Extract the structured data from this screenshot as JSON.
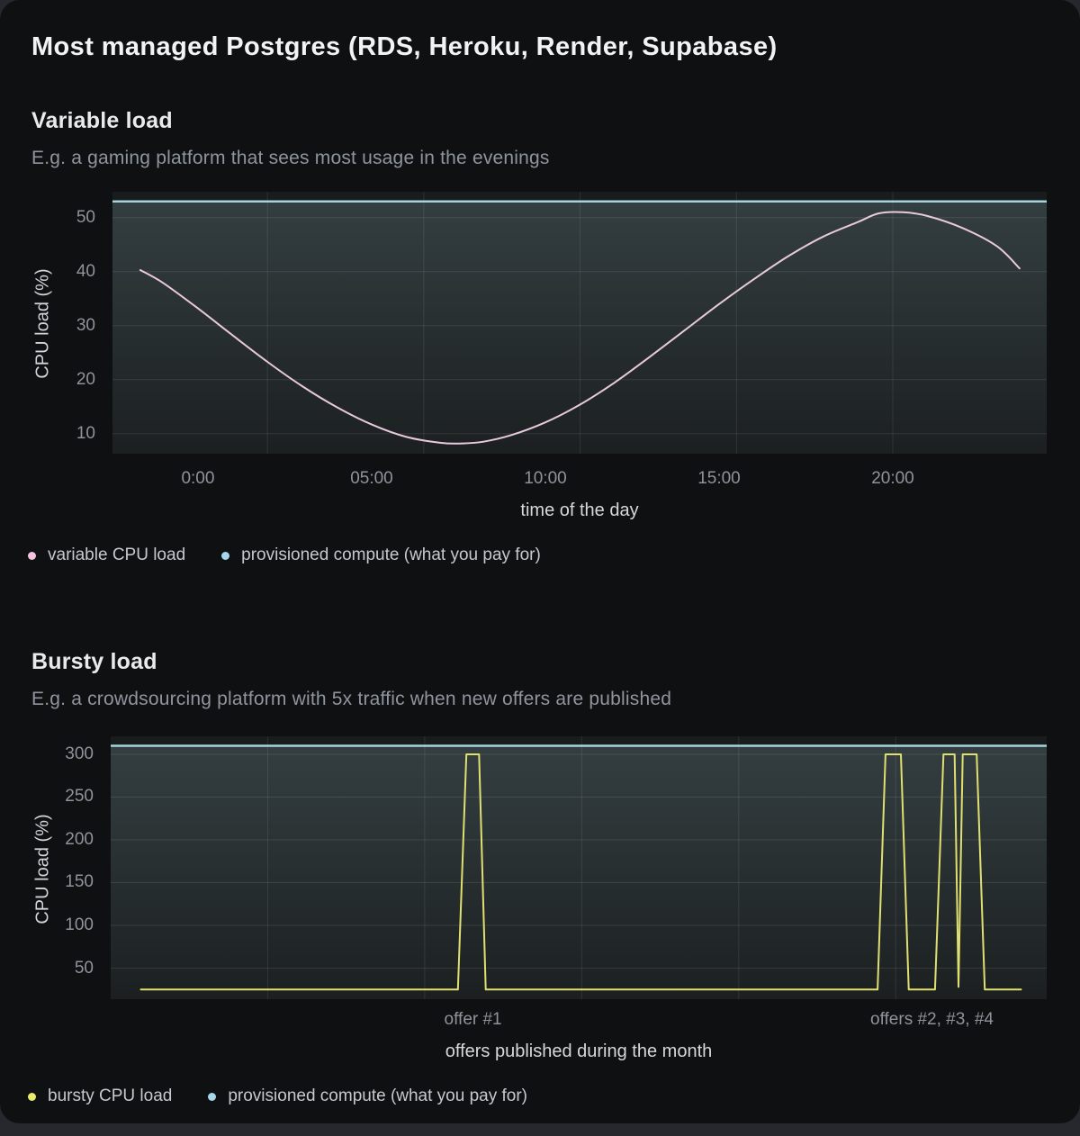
{
  "page": {
    "title": "Most managed Postgres (RDS, Heroku, Render, Supabase)"
  },
  "sections": [
    {
      "heading": "Variable load",
      "subtitle": "E.g. a gaming platform that sees most usage in the evenings",
      "legend": [
        {
          "label": "variable CPU load",
          "color": "#f4c2dc"
        },
        {
          "label": "provisioned compute (what you pay for)",
          "color": "#a5d8ea"
        }
      ]
    },
    {
      "heading": "Bursty load",
      "subtitle": "E.g. a crowdsourcing platform with 5x traffic when new offers are published",
      "legend": [
        {
          "label": "bursty CPU load",
          "color": "#e9e96d"
        },
        {
          "label": "provisioned compute (what you pay for)",
          "color": "#a5d8ea"
        }
      ]
    }
  ],
  "chart_data": [
    {
      "type": "line",
      "title": "Variable load",
      "xlabel": "time of the day",
      "ylabel": "CPU load (%)",
      "xlim": [
        -2.46,
        24.43
      ],
      "ylim": [
        6.3,
        54.8
      ],
      "grid": true,
      "legend_position": "bottom-left",
      "x_ticks": [
        {
          "value": 0,
          "label": "0:00"
        },
        {
          "value": 5,
          "label": "05:00"
        },
        {
          "value": 10,
          "label": "10:00"
        },
        {
          "value": 15,
          "label": "15:00"
        },
        {
          "value": 20,
          "label": "20:00"
        }
      ],
      "y_ticks": [
        10,
        20,
        30,
        40,
        50
      ],
      "x_grid": [
        2.0,
        6.5,
        11.0,
        15.5,
        20.0
      ],
      "series": [
        {
          "name": "variable CPU load",
          "color": "#e9cadb",
          "kind": "curve",
          "smooth": true,
          "points": [
            [
              -1.66,
              40.3
            ],
            [
              -1,
              37.9
            ],
            [
              0,
              33.2
            ],
            [
              1,
              28.2
            ],
            [
              2,
              23.3
            ],
            [
              3,
              18.8
            ],
            [
              4,
              14.9
            ],
            [
              5,
              11.7
            ],
            [
              6,
              9.4
            ],
            [
              7,
              8.3
            ],
            [
              7.6,
              8.2
            ],
            [
              8.2,
              8.5
            ],
            [
              9,
              9.7
            ],
            [
              10,
              12.1
            ],
            [
              11,
              15.4
            ],
            [
              12,
              19.5
            ],
            [
              13,
              24.2
            ],
            [
              14,
              29.1
            ],
            [
              15,
              34.0
            ],
            [
              16,
              38.6
            ],
            [
              17,
              42.9
            ],
            [
              18,
              46.5
            ],
            [
              19,
              49.2
            ],
            [
              19.6,
              50.8
            ],
            [
              20.3,
              51.0
            ],
            [
              21,
              50.3
            ],
            [
              22,
              48.1
            ],
            [
              23,
              44.7
            ],
            [
              23.65,
              40.6
            ]
          ]
        },
        {
          "name": "provisioned compute (what you pay for)",
          "color": "#a5d4e0",
          "kind": "hline",
          "value": 53,
          "area_fill": true
        }
      ]
    },
    {
      "type": "line",
      "title": "Bursty load",
      "xlabel": "offers published during the month",
      "ylabel": "CPU load (%)",
      "xlim": [
        0,
        31
      ],
      "ylim": [
        13.7,
        321
      ],
      "grid": true,
      "legend_position": "bottom-left",
      "x_ticks": [
        {
          "value": 12,
          "label": "offer #1"
        },
        {
          "value": 27.2,
          "label": "offers #2, #3, #4"
        }
      ],
      "y_ticks": [
        50,
        100,
        150,
        200,
        250,
        300
      ],
      "x_grid": [
        5.2,
        10.4,
        15.6,
        20.8,
        26.0
      ],
      "series": [
        {
          "name": "bursty CPU load",
          "color": "#e0e070",
          "kind": "curve",
          "smooth": false,
          "points": [
            [
              1.0,
              25
            ],
            [
              11.5,
              25
            ],
            [
              11.78,
              300
            ],
            [
              12.2,
              300
            ],
            [
              12.42,
              25
            ],
            [
              25.4,
              25
            ],
            [
              25.66,
              300
            ],
            [
              26.17,
              300
            ],
            [
              26.43,
              25
            ],
            [
              27.3,
              25
            ],
            [
              27.58,
              300
            ],
            [
              27.95,
              300
            ],
            [
              28.08,
              28
            ],
            [
              28.22,
              300
            ],
            [
              28.68,
              300
            ],
            [
              28.95,
              25
            ],
            [
              30.15,
              25
            ]
          ]
        },
        {
          "name": "provisioned compute (what you pay for)",
          "color": "#a5d4e0",
          "kind": "hline",
          "value": 310,
          "area_fill": true
        }
      ]
    }
  ]
}
